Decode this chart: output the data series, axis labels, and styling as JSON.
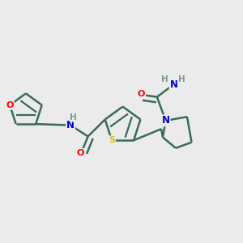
{
  "bg_color": "#ebebeb",
  "atom_colors": {
    "O": "#ff0000",
    "N": "#0000cd",
    "S": "#cccc00",
    "C": "#3a6b5a",
    "H": "#7a9a8a"
  },
  "bond_color": "#3a6b5a",
  "line_width": 1.8,
  "dbo": 0.012
}
